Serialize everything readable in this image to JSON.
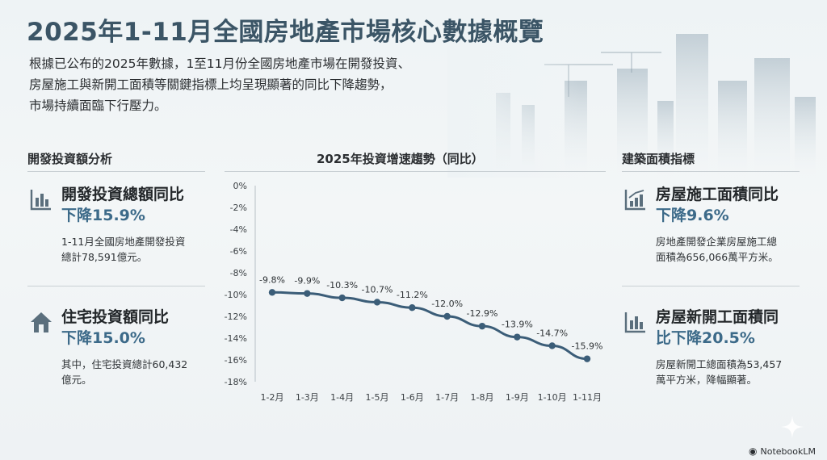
{
  "title": "2025年1-11月全國房地產市場核心數據概覽",
  "intro": [
    "根據已公布的2025年數據，1至11月份全國房地產市場在開發投資、",
    "房屋施工與新開工面積等關鍵指標上均呈現顯著的同比下降趨勢，",
    "市場持續面臨下行壓力。"
  ],
  "left": {
    "section_title": "開發投資額分析",
    "cards": [
      {
        "icon": "bar-chart-icon",
        "name": "開發投資總額同比",
        "value": "下降15.9%",
        "desc": [
          "1-11月全國房地產開發投資",
          "總計78,591億元。"
        ]
      },
      {
        "icon": "house-icon",
        "name": "住宅投資額同比",
        "value": "下降15.0%",
        "desc": [
          "其中，住宅投資總計60,432",
          "億元。"
        ]
      }
    ]
  },
  "right": {
    "section_title": "建築面積指標",
    "cards": [
      {
        "icon": "rising-chart-icon",
        "name": "房屋施工面積同比",
        "value": "下降9.6%",
        "desc": [
          "房地產開發企業房屋施工總",
          "面積為656,066萬平方米。"
        ]
      },
      {
        "icon": "bar-chart-icon",
        "name": "房屋新開工面積同",
        "value": "比下降20.5%",
        "desc": [
          "房屋新開工總面積為53,457",
          "萬平方米，降幅顯著。"
        ]
      }
    ]
  },
  "brand": "NotebookLM",
  "colors": {
    "accent": "#3c6a89",
    "line": "#3b5d78",
    "title": "#3b5566"
  },
  "chart_data": {
    "type": "line",
    "title": "2025年投資增速趨勢（同比）",
    "categories": [
      "1-2月",
      "1-3月",
      "1-4月",
      "1-5月",
      "1-6月",
      "1-7月",
      "1-8月",
      "1-9月",
      "1-10月",
      "1-11月"
    ],
    "series": [
      {
        "values": [
          -9.8,
          -9.9,
          -10.3,
          -10.7,
          -11.2,
          -12.0,
          -12.9,
          -13.9,
          -14.7,
          -15.9
        ]
      }
    ],
    "data_labels": [
      "-9.8%",
      "-9.9%",
      "-10.3%",
      "-10.7%",
      "-11.2%",
      "-12.0%",
      "-12.9%",
      "-13.9%",
      "-14.7%",
      "-15.9%"
    ],
    "ylim": [
      -18,
      0
    ],
    "yticks": [
      0,
      -2,
      -4,
      -6,
      -8,
      -10,
      -12,
      -14,
      -16,
      -18
    ],
    "ytick_labels": [
      "0%",
      "-2%",
      "-4%",
      "-6%",
      "-8%",
      "-10%",
      "-12%",
      "-14%",
      "-16%",
      "-18%"
    ],
    "grid": false,
    "legend": "none"
  }
}
